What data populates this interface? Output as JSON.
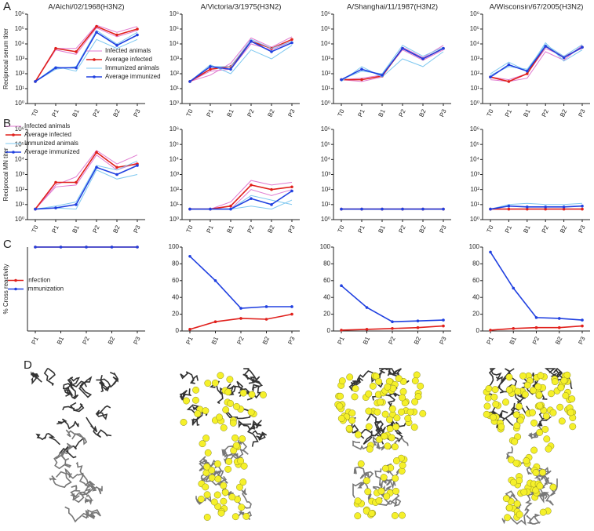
{
  "panel_labels": [
    "A",
    "B",
    "C",
    "D"
  ],
  "chart_data": [
    {
      "type": "line",
      "title": "A/Aichi/02/1968(H3N2)",
      "ylabel": "Reciprocal serum titer",
      "log_scale": true,
      "legend": "center-right",
      "categories": [
        "T0",
        "P1",
        "B1",
        "P2",
        "B2",
        "P3"
      ],
      "ylim": [
        1,
        1000000
      ],
      "yticks": [
        {
          "value": 1,
          "label": "10⁰"
        },
        {
          "value": 10,
          "label": "10¹"
        },
        {
          "value": 100,
          "label": "10²"
        },
        {
          "value": 1000,
          "label": "10³"
        },
        {
          "value": 10000,
          "label": "10⁴"
        },
        {
          "value": 100000,
          "label": "10⁵"
        },
        {
          "value": 1000000,
          "label": "10⁶"
        }
      ],
      "series": [
        {
          "name": "Infected animals",
          "color": "#e07ad0",
          "values": [
            30,
            5000,
            5000,
            180000,
            60000,
            150000
          ]
        },
        {
          "color": "#e07ad0",
          "values": [
            30,
            4000,
            2000,
            120000,
            30000,
            80000
          ]
        },
        {
          "name": "Average infected",
          "color": "#e0201c",
          "marker": true,
          "values": [
            30,
            5000,
            3000,
            150000,
            40000,
            100000
          ]
        },
        {
          "name": "Immunized animals",
          "color": "#7fc8f0",
          "values": [
            30,
            300,
            150,
            20000,
            5000,
            20000
          ]
        },
        {
          "color": "#7fc8f0",
          "values": [
            30,
            200,
            300,
            80000,
            10000,
            60000
          ]
        },
        {
          "name": "Average immunized",
          "color": "#2040e0",
          "marker": true,
          "values": [
            30,
            250,
            250,
            60000,
            8000,
            40000
          ]
        }
      ]
    },
    {
      "type": "line",
      "title": "A/Victoria/3/1975(H3N2)",
      "log_scale": true,
      "categories": [
        "T0",
        "P1",
        "B1",
        "P2",
        "B2",
        "P3"
      ],
      "ylim": [
        1,
        1000000
      ],
      "yticks": [
        {
          "value": 1,
          "label": "10⁰"
        },
        {
          "value": 10,
          "label": "10¹"
        },
        {
          "value": 100,
          "label": "10²"
        },
        {
          "value": 1000,
          "label": "10³"
        },
        {
          "value": 10000,
          "label": "10⁴"
        },
        {
          "value": 100000,
          "label": "10⁵"
        },
        {
          "value": 1000000,
          "label": "10⁶"
        }
      ],
      "series": [
        {
          "color": "#e07ad0",
          "values": [
            30,
            80,
            500,
            25000,
            6000,
            30000
          ]
        },
        {
          "color": "#e07ad0",
          "values": [
            30,
            150,
            200,
            10000,
            4000,
            15000
          ]
        },
        {
          "color": "#e0201c",
          "marker": true,
          "values": [
            30,
            200,
            300,
            15000,
            5000,
            20000
          ]
        },
        {
          "color": "#7fc8f0",
          "values": [
            30,
            400,
            100,
            4000,
            1000,
            8000
          ]
        },
        {
          "color": "#7fc8f0",
          "values": [
            30,
            300,
            300,
            20000,
            5000,
            15000
          ]
        },
        {
          "color": "#2040e0",
          "marker": true,
          "values": [
            30,
            300,
            200,
            15000,
            3000,
            12000
          ]
        }
      ]
    },
    {
      "type": "line",
      "title": "A/Shanghai/11/1987(H3N2)",
      "log_scale": true,
      "categories": [
        "T0",
        "P1",
        "B1",
        "P2",
        "B2",
        "P3"
      ],
      "ylim": [
        1,
        1000000
      ],
      "yticks": [
        {
          "value": 1,
          "label": "10⁰"
        },
        {
          "value": 10,
          "label": "10¹"
        },
        {
          "value": 100,
          "label": "10²"
        },
        {
          "value": 1000,
          "label": "10³"
        },
        {
          "value": 10000,
          "label": "10⁴"
        },
        {
          "value": 100000,
          "label": "10⁵"
        },
        {
          "value": 1000000,
          "label": "10⁶"
        }
      ],
      "series": [
        {
          "color": "#e07ad0",
          "values": [
            40,
            30,
            60,
            6000,
            1200,
            8000
          ]
        },
        {
          "color": "#e07ad0",
          "values": [
            40,
            50,
            80,
            4000,
            800,
            4000
          ]
        },
        {
          "color": "#e0201c",
          "marker": true,
          "values": [
            40,
            40,
            70,
            5000,
            1000,
            5000
          ]
        },
        {
          "color": "#7fc8f0",
          "values": [
            30,
            300,
            60,
            1000,
            300,
            3000
          ]
        },
        {
          "color": "#7fc8f0",
          "values": [
            40,
            150,
            100,
            8000,
            1500,
            6000
          ]
        },
        {
          "color": "#2040e0",
          "marker": true,
          "values": [
            40,
            200,
            80,
            5000,
            1000,
            5000
          ]
        }
      ]
    },
    {
      "type": "line",
      "title": "A/Wisconsin/67/2005(H3N2)",
      "log_scale": true,
      "categories": [
        "T0",
        "P1",
        "B1",
        "P2",
        "B2",
        "P3"
      ],
      "ylim": [
        1,
        1000000
      ],
      "yticks": [
        {
          "value": 1,
          "label": "10⁰"
        },
        {
          "value": 10,
          "label": "10¹"
        },
        {
          "value": 100,
          "label": "10²"
        },
        {
          "value": 1000,
          "label": "10³"
        },
        {
          "value": 10000,
          "label": "10⁴"
        },
        {
          "value": 100000,
          "label": "10⁵"
        },
        {
          "value": 1000000,
          "label": "10⁶"
        }
      ],
      "series": [
        {
          "color": "#e07ad0",
          "values": [
            40,
            30,
            50,
            3000,
            800,
            8000
          ]
        },
        {
          "color": "#e07ad0",
          "values": [
            60,
            40,
            100,
            5000,
            1500,
            5000
          ]
        },
        {
          "color": "#e0201c",
          "marker": true,
          "values": [
            60,
            30,
            100,
            7000,
            1200,
            6000
          ]
        },
        {
          "color": "#7fc8f0",
          "values": [
            100,
            600,
            150,
            12000,
            700,
            4000
          ]
        },
        {
          "color": "#7fc8f0",
          "values": [
            80,
            300,
            200,
            9000,
            1500,
            9000
          ]
        },
        {
          "color": "#2040e0",
          "marker": true,
          "values": [
            60,
            400,
            150,
            7000,
            1200,
            6000
          ]
        }
      ]
    },
    {
      "type": "line",
      "ylabel": "Reciprocal MN titer",
      "log_scale": true,
      "legend": "upper-left",
      "categories": [
        "T0",
        "P1",
        "B1",
        "P2",
        "B2",
        "P3"
      ],
      "ylim": [
        1,
        1000000
      ],
      "yticks": [
        {
          "value": 1,
          "label": "10⁰"
        },
        {
          "value": 10,
          "label": "10¹"
        },
        {
          "value": 100,
          "label": "10²"
        },
        {
          "value": 1000,
          "label": "10³"
        },
        {
          "value": 10000,
          "label": "10⁴"
        },
        {
          "value": 100000,
          "label": "10⁵"
        },
        {
          "value": 1000000,
          "label": "10⁶"
        }
      ],
      "series": [
        {
          "name": "Infected animals",
          "color": "#e07ad0",
          "values": [
            5,
            200,
            700,
            40000,
            5000,
            20000
          ]
        },
        {
          "color": "#e07ad0",
          "values": [
            5,
            150,
            200,
            20000,
            2000,
            6000
          ]
        },
        {
          "name": "Average infected",
          "color": "#e0201c",
          "marker": true,
          "values": [
            5,
            300,
            300,
            30000,
            3000,
            5000
          ]
        },
        {
          "name": "Immunized animals",
          "color": "#7fc8f0",
          "values": [
            5,
            6,
            5,
            2000,
            500,
            1000
          ]
        },
        {
          "color": "#7fc8f0",
          "values": [
            5,
            8,
            15,
            4000,
            2000,
            8000
          ]
        },
        {
          "name": "Average immunized",
          "color": "#2040e0",
          "marker": true,
          "values": [
            5,
            6,
            10,
            3000,
            1000,
            4000
          ]
        }
      ]
    },
    {
      "type": "line",
      "log_scale": true,
      "categories": [
        "T0",
        "P1",
        "B1",
        "P2",
        "B2",
        "P3"
      ],
      "ylim": [
        1,
        1000000
      ],
      "yticks": [
        {
          "value": 1,
          "label": "10⁰"
        },
        {
          "value": 10,
          "label": "10¹"
        },
        {
          "value": 100,
          "label": "10²"
        },
        {
          "value": 1000,
          "label": "10³"
        },
        {
          "value": 10000,
          "label": "10⁴"
        },
        {
          "value": 100000,
          "label": "10⁵"
        },
        {
          "value": 1000000,
          "label": "10⁶"
        }
      ],
      "series": [
        {
          "color": "#e07ad0",
          "values": [
            5,
            5,
            15,
            400,
            200,
            300
          ]
        },
        {
          "color": "#e07ad0",
          "values": [
            5,
            5,
            5,
            100,
            40,
            100
          ]
        },
        {
          "color": "#e0201c",
          "marker": true,
          "values": [
            5,
            5,
            8,
            200,
            100,
            150
          ]
        },
        {
          "color": "#7fc8f0",
          "values": [
            5,
            5,
            5,
            8,
            5,
            20
          ]
        },
        {
          "color": "#7fc8f0",
          "values": [
            5,
            5,
            5,
            40,
            20,
            10
          ]
        },
        {
          "color": "#2040e0",
          "marker": true,
          "values": [
            5,
            5,
            5,
            25,
            10,
            80
          ]
        }
      ]
    },
    {
      "type": "line",
      "log_scale": true,
      "categories": [
        "T0",
        "P1",
        "B1",
        "P2",
        "B2",
        "P3"
      ],
      "ylim": [
        1,
        1000000
      ],
      "yticks": [
        {
          "value": 1,
          "label": "10⁰"
        },
        {
          "value": 10,
          "label": "10¹"
        },
        {
          "value": 100,
          "label": "10²"
        },
        {
          "value": 1000,
          "label": "10³"
        },
        {
          "value": 10000,
          "label": "10⁴"
        },
        {
          "value": 100000,
          "label": "10⁵"
        },
        {
          "value": 1000000,
          "label": "10⁶"
        }
      ],
      "series": [
        {
          "color": "#e0201c",
          "marker": true,
          "values": [
            5,
            5,
            5,
            5,
            5,
            5
          ]
        },
        {
          "color": "#2040e0",
          "marker": true,
          "values": [
            5,
            5,
            5,
            5,
            5,
            5
          ]
        }
      ]
    },
    {
      "type": "line",
      "log_scale": true,
      "categories": [
        "T0",
        "P1",
        "B1",
        "P2",
        "B2",
        "P3"
      ],
      "ylim": [
        1,
        1000000
      ],
      "yticks": [
        {
          "value": 1,
          "label": "10⁰"
        },
        {
          "value": 10,
          "label": "10¹"
        },
        {
          "value": 100,
          "label": "10²"
        },
        {
          "value": 1000,
          "label": "10³"
        },
        {
          "value": 10000,
          "label": "10⁴"
        },
        {
          "value": 100000,
          "label": "10⁵"
        },
        {
          "value": 1000000,
          "label": "10⁶"
        }
      ],
      "series": [
        {
          "color": "#7fc8f0",
          "values": [
            5,
            10,
            12,
            10,
            10,
            12
          ]
        },
        {
          "color": "#e0201c",
          "marker": true,
          "values": [
            5,
            5,
            5,
            5,
            5,
            5
          ]
        },
        {
          "color": "#2040e0",
          "marker": true,
          "values": [
            5,
            8,
            7,
            7,
            7,
            8
          ]
        }
      ]
    },
    {
      "type": "line",
      "ylabel": "% Cross reactivity",
      "legend": "center-left",
      "categories": [
        "P1",
        "B1",
        "P2",
        "B2",
        "P3"
      ],
      "ylim": [
        0,
        100
      ],
      "series": [
        {
          "name": "Infection",
          "color": "#e0201c",
          "marker": true,
          "values": [
            100,
            100,
            100,
            100,
            100
          ]
        },
        {
          "name": "immunization",
          "color": "#2040e0",
          "marker": true,
          "values": [
            100,
            100,
            100,
            100,
            100
          ]
        }
      ]
    },
    {
      "type": "line",
      "categories": [
        "P1",
        "B1",
        "P2",
        "B2",
        "P3"
      ],
      "ylim": [
        0,
        100
      ],
      "yticks": [
        0,
        20,
        40,
        60,
        80,
        100
      ],
      "series": [
        {
          "color": "#e0201c",
          "marker": true,
          "values": [
            2,
            11,
            15,
            14,
            20
          ]
        },
        {
          "color": "#2040e0",
          "marker": true,
          "values": [
            89,
            60,
            27,
            29,
            29
          ]
        }
      ]
    },
    {
      "type": "line",
      "categories": [
        "P1",
        "B1",
        "P2",
        "B2",
        "P3"
      ],
      "ylim": [
        0,
        100
      ],
      "yticks": [
        0,
        20,
        40,
        60,
        80,
        100
      ],
      "series": [
        {
          "color": "#e0201c",
          "marker": true,
          "values": [
            1,
            2,
            3,
            4,
            6
          ]
        },
        {
          "color": "#2040e0",
          "marker": true,
          "values": [
            54,
            28,
            11,
            12,
            13
          ]
        }
      ]
    },
    {
      "type": "line",
      "categories": [
        "P1",
        "B1",
        "P2",
        "B2",
        "P3"
      ],
      "ylim": [
        0,
        100
      ],
      "yticks": [
        0,
        20,
        40,
        60,
        80,
        100
      ],
      "series": [
        {
          "color": "#e0201c",
          "marker": true,
          "values": [
            1,
            3,
            4,
            4,
            6
          ]
        },
        {
          "color": "#2040e0",
          "marker": true,
          "values": [
            94,
            51,
            16,
            15,
            13
          ]
        }
      ]
    }
  ]
}
